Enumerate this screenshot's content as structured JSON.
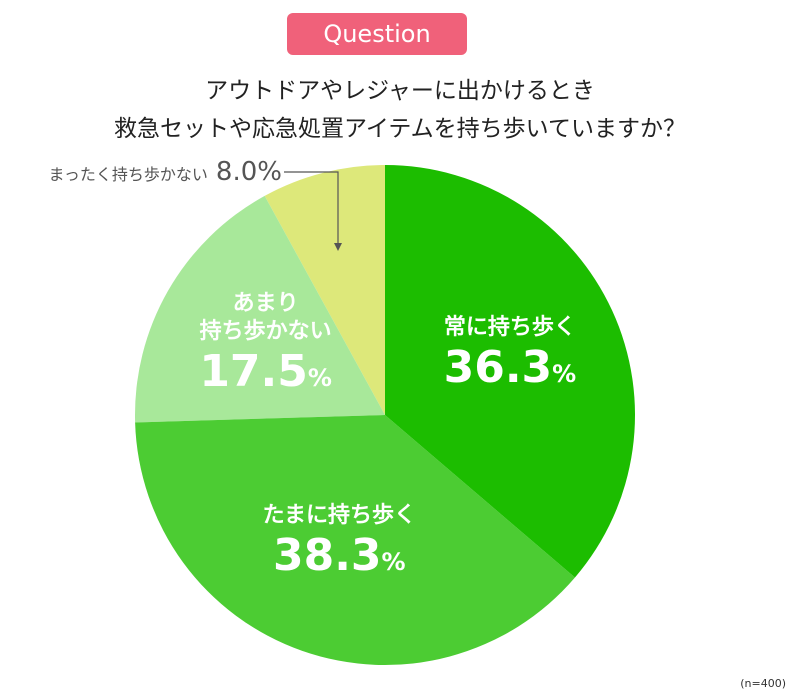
{
  "badge": "Question",
  "chart_data": {
    "type": "pie",
    "title": "アウトドアやレジャーに出かけるとき\n救急セットや応急処置アイテムを持ち歩いていますか？",
    "categories": [
      "常に持ち歩く",
      "たまに持ち歩く",
      "あまり\n持ち歩かない",
      "まったく持ち歩かない"
    ],
    "values": [
      36.3,
      38.3,
      17.5,
      8.0
    ],
    "value_labels": [
      "36.3%",
      "38.3%",
      "17.5%",
      "8.0%"
    ],
    "colors": [
      "#1cbd00",
      "#4ccc33",
      "#a8e89a",
      "#dde87a"
    ],
    "note": "(n=400)"
  }
}
